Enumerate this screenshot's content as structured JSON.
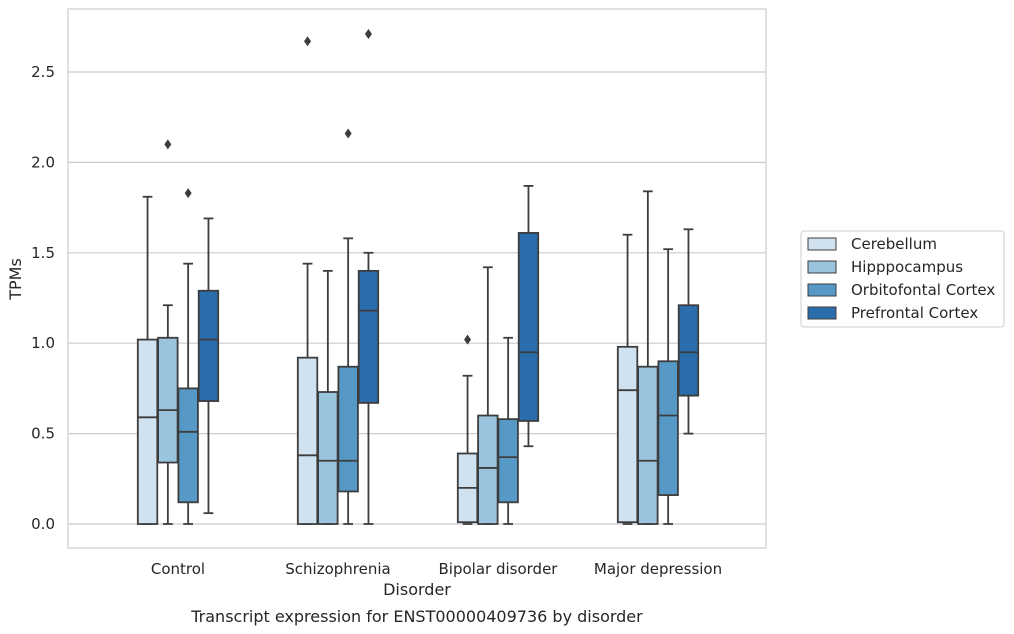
{
  "chart_data": {
    "type": "box",
    "xlabel": "Disorder",
    "ylabel": "TPMs",
    "caption": "Transcript expression for ENST00000409736 by disorder",
    "categories": [
      "Control",
      "Schizophrenia",
      "Bipolar disorder",
      "Major depression"
    ],
    "ylim": [
      -0.13,
      2.85
    ],
    "yticks": [
      0.0,
      0.5,
      1.0,
      1.5,
      2.0,
      2.5
    ],
    "ytick_labels": [
      "0.0",
      "0.5",
      "1.0",
      "1.5",
      "2.0",
      "2.5"
    ],
    "grid": "horizontal",
    "legend_position": "outside right",
    "series": [
      {
        "name": "Cerebellum",
        "color": "#d0e1f0",
        "boxes": [
          {
            "min": 0.0,
            "q1": 0.0,
            "median": 0.59,
            "q3": 1.02,
            "max": 1.81,
            "outliers": []
          },
          {
            "min": 0.0,
            "q1": 0.0,
            "median": 0.38,
            "q3": 0.92,
            "max": 1.44,
            "outliers": [
              2.67
            ]
          },
          {
            "min": 0.0,
            "q1": 0.01,
            "median": 0.2,
            "q3": 0.39,
            "max": 0.82,
            "outliers": [
              1.02
            ]
          },
          {
            "min": 0.0,
            "q1": 0.01,
            "median": 0.74,
            "q3": 0.98,
            "max": 1.6,
            "outliers": []
          }
        ]
      },
      {
        "name": "Hipppocampus",
        "color": "#9ac4dd",
        "boxes": [
          {
            "min": 0.0,
            "q1": 0.34,
            "median": 0.63,
            "q3": 1.03,
            "max": 1.21,
            "outliers": [
              2.1
            ]
          },
          {
            "min": 0.0,
            "q1": 0.0,
            "median": 0.35,
            "q3": 0.73,
            "max": 1.4,
            "outliers": []
          },
          {
            "min": 0.0,
            "q1": 0.0,
            "median": 0.31,
            "q3": 0.6,
            "max": 1.42,
            "outliers": []
          },
          {
            "min": 0.0,
            "q1": 0.0,
            "median": 0.35,
            "q3": 0.87,
            "max": 1.84,
            "outliers": []
          }
        ]
      },
      {
        "name": "Orbitofontal Cortex",
        "color": "#5799c6",
        "boxes": [
          {
            "min": 0.0,
            "q1": 0.12,
            "median": 0.51,
            "q3": 0.75,
            "max": 1.44,
            "outliers": [
              1.83
            ]
          },
          {
            "min": 0.0,
            "q1": 0.18,
            "median": 0.35,
            "q3": 0.87,
            "max": 1.58,
            "outliers": [
              2.16
            ]
          },
          {
            "min": 0.0,
            "q1": 0.12,
            "median": 0.37,
            "q3": 0.58,
            "max": 1.03,
            "outliers": []
          },
          {
            "min": 0.0,
            "q1": 0.16,
            "median": 0.6,
            "q3": 0.9,
            "max": 1.52,
            "outliers": []
          }
        ]
      },
      {
        "name": "Prefrontal Cortex",
        "color": "#2a6dad",
        "boxes": [
          {
            "min": 0.06,
            "q1": 0.68,
            "median": 1.02,
            "q3": 1.29,
            "max": 1.69,
            "outliers": []
          },
          {
            "min": 0.0,
            "q1": 0.67,
            "median": 1.18,
            "q3": 1.4,
            "max": 1.5,
            "outliers": [
              2.71
            ]
          },
          {
            "min": 0.43,
            "q1": 0.57,
            "median": 0.95,
            "q3": 1.61,
            "max": 1.87,
            "outliers": []
          },
          {
            "min": 0.5,
            "q1": 0.71,
            "median": 0.95,
            "q3": 1.21,
            "max": 1.63,
            "outliers": []
          }
        ]
      }
    ]
  }
}
